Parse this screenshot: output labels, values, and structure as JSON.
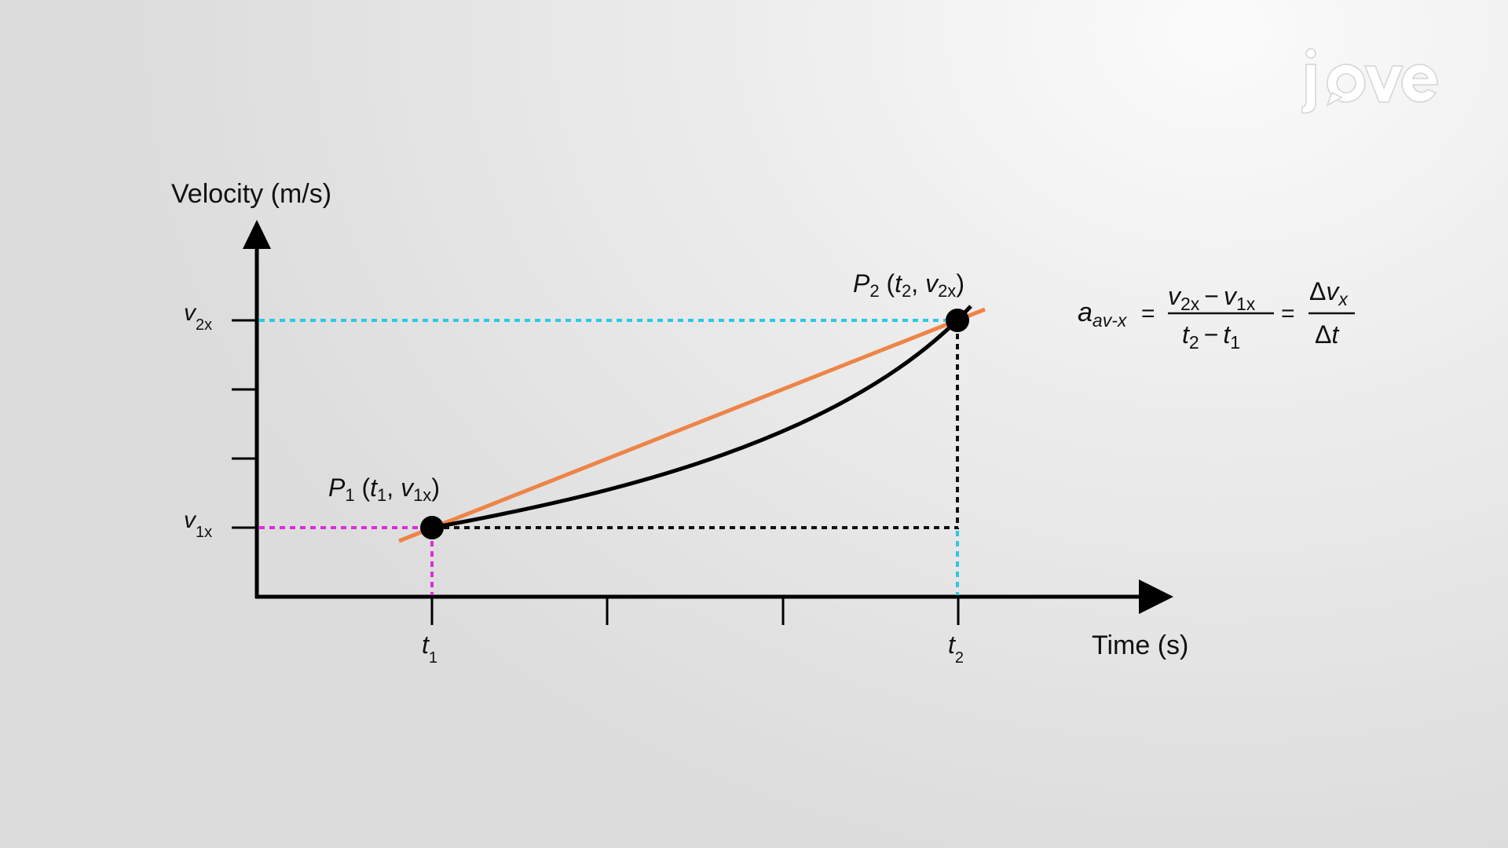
{
  "labels": {
    "y_axis_title": "Velocity (m/s)",
    "x_axis_title": "Time (s)",
    "v2x": {
      "base": "v",
      "sub": "2x"
    },
    "v1x": {
      "base": "v",
      "sub": "1x"
    },
    "t1": {
      "base": "t",
      "sub": "1"
    },
    "t2": {
      "base": "t",
      "sub": "2"
    },
    "p1": {
      "name": "P",
      "name_sub": "1",
      "open": " (",
      "t": "t",
      "t_sub": "1",
      "sep": ", ",
      "v": "v",
      "v_sub": "1x",
      "close": ")"
    },
    "p2": {
      "name": "P",
      "name_sub": "2",
      "open": " (",
      "t": "t",
      "t_sub": "2",
      "sep": ", ",
      "v": "v",
      "v_sub": "2x",
      "close": ")"
    }
  },
  "formula": {
    "lhs": "a",
    "lhs_sub": "av-x",
    "equals": "=",
    "num_v2": "v",
    "num_v2_sub": "2x",
    "minus": "−",
    "num_v1": "v",
    "num_v1_sub": "1x",
    "den_t2": "t",
    "den_t2_sub": "2",
    "den_t1": "t",
    "den_t1_sub": "1",
    "delta": "Δ",
    "dv_v": "v",
    "dv_sub": "x",
    "dt_t": "t"
  },
  "logo": {
    "text": "jove"
  },
  "colors": {
    "curve": "#000000",
    "secant": "#ee8447",
    "v2_guide": "#29c9e6",
    "v1_guide": "#dd2cdc",
    "black_guide": "#111111",
    "point": "#000000"
  }
}
